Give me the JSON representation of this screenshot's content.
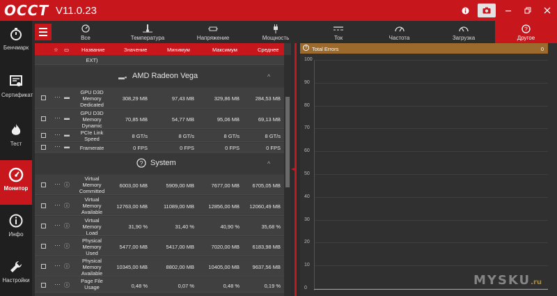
{
  "app": {
    "logo": "OCCT",
    "version": "V11.0.23"
  },
  "sidebar": {
    "items": [
      {
        "label": "Бенчмарк",
        "icon": "stopwatch-icon"
      },
      {
        "label": "Сертификат",
        "icon": "certificate-icon"
      },
      {
        "label": "Тест",
        "icon": "flame-icon"
      },
      {
        "label": "Монитор",
        "icon": "gauge-icon"
      },
      {
        "label": "Инфо",
        "icon": "info-icon"
      },
      {
        "label": "Настройки",
        "icon": "wrench-icon"
      }
    ]
  },
  "tabs": [
    {
      "label": "Все",
      "icon": "dashboard-icon"
    },
    {
      "label": "Температура",
      "icon": "thermometer-icon"
    },
    {
      "label": "Напряжение",
      "icon": "plug-icon"
    },
    {
      "label": "Мощность",
      "icon": "power-plug-icon"
    },
    {
      "label": "Ток",
      "icon": "current-icon"
    },
    {
      "label": "Частота",
      "icon": "speedometer-icon"
    },
    {
      "label": "Загрузка",
      "icon": "load-gauge-icon"
    },
    {
      "label": "Другое",
      "icon": "question-icon"
    }
  ],
  "table": {
    "headers": {
      "name": "Название",
      "value": "Значение",
      "min": "Минимум",
      "max": "Максимум",
      "avg": "Среднее"
    },
    "partial_row": "EXT)",
    "groups": [
      {
        "name": "AMD Radeon Vega",
        "rows": [
          {
            "name": "GPU D3D Memory Dedicated",
            "value": "308,29 MB",
            "min": "97,43 MB",
            "max": "329,86 MB",
            "avg": "284,53 MB"
          },
          {
            "name": "GPU D3D Memory Dynamic",
            "value": "70,85 MB",
            "min": "54,77 MB",
            "max": "95,06 MB",
            "avg": "69,13 MB"
          },
          {
            "name": "PCIe Link Speed",
            "value": "8 GT/s",
            "min": "8 GT/s",
            "max": "8 GT/s",
            "avg": "8 GT/s"
          },
          {
            "name": "Framerate",
            "value": "0 FPS",
            "min": "0 FPS",
            "max": "0 FPS",
            "avg": "0 FPS"
          }
        ]
      },
      {
        "name": "System",
        "rows": [
          {
            "name": "Virtual Memory Committed",
            "value": "6003,00 MB",
            "min": "5909,00 MB",
            "max": "7677,00 MB",
            "avg": "6705,05 MB"
          },
          {
            "name": "Virtual Memory Available",
            "value": "12763,00 MB",
            "min": "11089,00 MB",
            "max": "12856,00 MB",
            "avg": "12060,49 MB"
          },
          {
            "name": "Virtual Memory Load",
            "value": "31,90 %",
            "min": "31,40 %",
            "max": "40,90 %",
            "avg": "35,68 %"
          },
          {
            "name": "Physical Memory Used",
            "value": "5477,00 MB",
            "min": "5417,00 MB",
            "max": "7020,00 MB",
            "avg": "6183,98 MB"
          },
          {
            "name": "Physical Memory Available",
            "value": "10345,00 MB",
            "min": "8802,00 MB",
            "max": "10405,00 MB",
            "avg": "9637,56 MB"
          },
          {
            "name": "Page File Usage",
            "value": "0,48 %",
            "min": "0,07 %",
            "max": "0,48 %",
            "avg": "0,19 %"
          }
        ]
      }
    ]
  },
  "chart": {
    "title": "Total Errors",
    "value": "0",
    "yticks": [
      "100",
      "90",
      "80",
      "70",
      "60",
      "50",
      "40",
      "30",
      "20",
      "10",
      "0"
    ]
  },
  "watermark": {
    "main": "MYSKU",
    "suffix": ".ru"
  },
  "colors": {
    "accent": "#c8161d",
    "chart_header": "#9c6a2c",
    "background": "#2b2b2b"
  }
}
